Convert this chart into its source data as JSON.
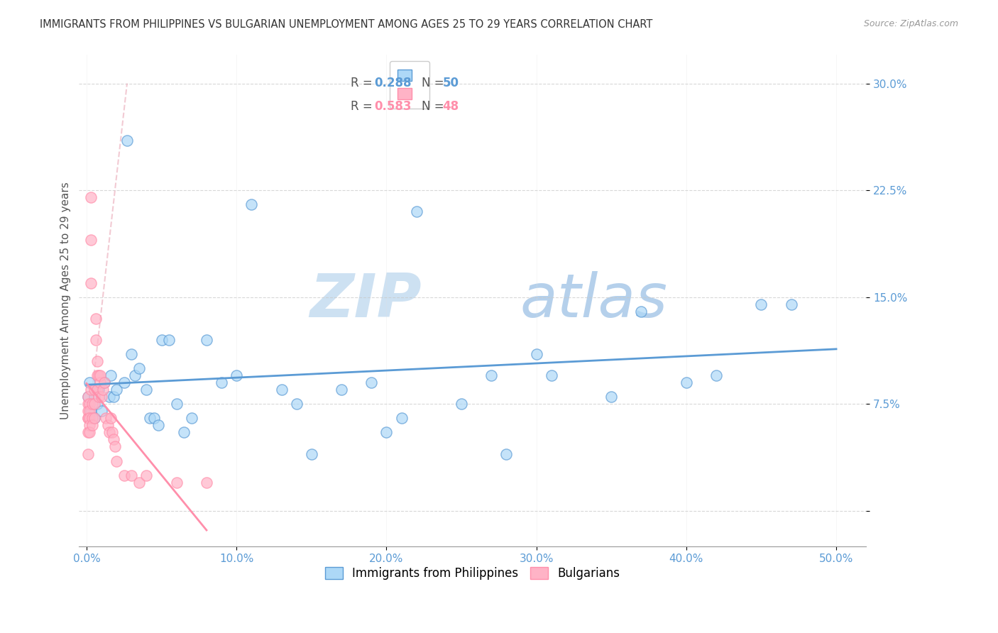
{
  "title": "IMMIGRANTS FROM PHILIPPINES VS BULGARIAN UNEMPLOYMENT AMONG AGES 25 TO 29 YEARS CORRELATION CHART",
  "source": "Source: ZipAtlas.com",
  "ylabel": "Unemployment Among Ages 25 to 29 years",
  "x_ticks": [
    0.0,
    0.1,
    0.2,
    0.3,
    0.4,
    0.5
  ],
  "x_tick_labels": [
    "0.0%",
    "10.0%",
    "20.0%",
    "30.0%",
    "40.0%",
    "50.0%"
  ],
  "y_ticks": [
    0.0,
    0.075,
    0.15,
    0.225,
    0.3
  ],
  "y_tick_labels": [
    "",
    "7.5%",
    "15.0%",
    "22.5%",
    "30.0%"
  ],
  "xlim": [
    -0.005,
    0.52
  ],
  "ylim": [
    -0.025,
    0.32
  ],
  "legend_labels": [
    "Immigrants from Philippines",
    "Bulgarians"
  ],
  "legend_R": [
    "0.288",
    "0.583"
  ],
  "legend_N": [
    "50",
    "48"
  ],
  "blue_color": "#5B9BD5",
  "pink_color": "#FF8FAB",
  "blue_fill": "#ADD8F7",
  "pink_fill": "#FFB3C6",
  "watermark_zip": "ZIP",
  "watermark_atlas": "atlas",
  "blue_scatter_x": [
    0.001,
    0.002,
    0.003,
    0.005,
    0.005,
    0.007,
    0.008,
    0.01,
    0.012,
    0.015,
    0.016,
    0.018,
    0.02,
    0.025,
    0.027,
    0.03,
    0.032,
    0.035,
    0.04,
    0.042,
    0.045,
    0.048,
    0.05,
    0.055,
    0.06,
    0.065,
    0.07,
    0.08,
    0.09,
    0.1,
    0.11,
    0.13,
    0.14,
    0.15,
    0.17,
    0.19,
    0.2,
    0.21,
    0.22,
    0.25,
    0.27,
    0.28,
    0.3,
    0.31,
    0.35,
    0.37,
    0.4,
    0.42,
    0.45,
    0.47
  ],
  "blue_scatter_y": [
    0.08,
    0.09,
    0.07,
    0.065,
    0.08,
    0.075,
    0.085,
    0.07,
    0.09,
    0.08,
    0.095,
    0.08,
    0.085,
    0.09,
    0.26,
    0.11,
    0.095,
    0.1,
    0.085,
    0.065,
    0.065,
    0.06,
    0.12,
    0.12,
    0.075,
    0.055,
    0.065,
    0.12,
    0.09,
    0.095,
    0.215,
    0.085,
    0.075,
    0.04,
    0.085,
    0.09,
    0.055,
    0.065,
    0.21,
    0.075,
    0.095,
    0.04,
    0.11,
    0.095,
    0.08,
    0.14,
    0.09,
    0.095,
    0.145,
    0.145
  ],
  "pink_scatter_x": [
    0.001,
    0.001,
    0.001,
    0.001,
    0.001,
    0.001,
    0.001,
    0.002,
    0.002,
    0.002,
    0.002,
    0.002,
    0.003,
    0.003,
    0.003,
    0.003,
    0.004,
    0.004,
    0.004,
    0.005,
    0.005,
    0.005,
    0.006,
    0.006,
    0.007,
    0.007,
    0.007,
    0.008,
    0.008,
    0.009,
    0.009,
    0.01,
    0.011,
    0.012,
    0.013,
    0.014,
    0.015,
    0.016,
    0.017,
    0.018,
    0.019,
    0.02,
    0.025,
    0.03,
    0.035,
    0.04,
    0.06,
    0.08
  ],
  "pink_scatter_y": [
    0.075,
    0.065,
    0.07,
    0.08,
    0.065,
    0.055,
    0.04,
    0.075,
    0.07,
    0.065,
    0.06,
    0.055,
    0.22,
    0.19,
    0.16,
    0.085,
    0.065,
    0.075,
    0.06,
    0.085,
    0.075,
    0.065,
    0.135,
    0.12,
    0.105,
    0.095,
    0.085,
    0.095,
    0.08,
    0.09,
    0.095,
    0.08,
    0.085,
    0.09,
    0.065,
    0.06,
    0.055,
    0.065,
    0.055,
    0.05,
    0.045,
    0.035,
    0.025,
    0.025,
    0.02,
    0.025,
    0.02,
    0.02
  ]
}
